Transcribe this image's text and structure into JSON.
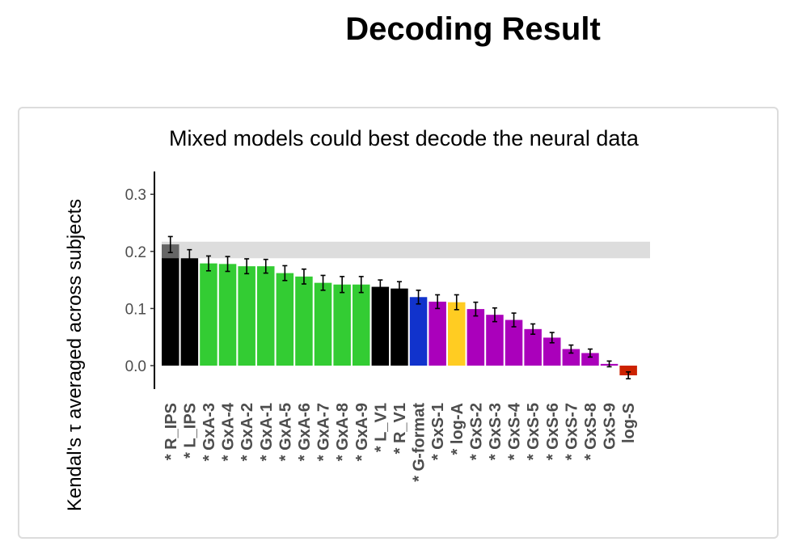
{
  "page": {
    "title": "Decoding Result"
  },
  "chart_data": {
    "type": "bar",
    "title": "Mixed models could best decode the neural data",
    "xlabel": "",
    "ylabel": "Kendal's τ averaged across subjects",
    "ylim": [
      -0.04,
      0.34
    ],
    "yticks": [
      "0.0",
      "0.1",
      "0.2",
      "0.3"
    ],
    "yticks_values": [
      0.0,
      0.1,
      0.2,
      0.3
    ],
    "grid": false,
    "noise_ceiling": {
      "lower": 0.188,
      "upper": 0.217
    },
    "categories": [
      "R_IPS",
      "L_IPS",
      "GxA-3",
      "GxA-4",
      "GxA-2",
      "GxA-1",
      "GxA-5",
      "GxA-6",
      "GxA-7",
      "GxA-8",
      "GxA-9",
      "L_V1",
      "R_V1",
      "G-format",
      "GxS-1",
      "log-A",
      "GxS-2",
      "GxS-3",
      "GxS-4",
      "GxS-5",
      "GxS-6",
      "GxS-7",
      "GxS-8",
      "GxS-9",
      "log-S"
    ],
    "star_labels": [
      "* R_IPS",
      "* L_IPS",
      "* GxA-3",
      "* GxA-4",
      "* GxA-2",
      "* GxA-1",
      "* GxA-5",
      "* GxA-6",
      "* GxA-7",
      "* GxA-8",
      "* GxA-9",
      "* L_V1",
      "* R_V1",
      "* G-format",
      "* GxS-1",
      "* log-A",
      "* GxS-2",
      "* GxS-3",
      "* GxS-4",
      "* GxS-5",
      "* GxS-6",
      "* GxS-7",
      "* GxS-8",
      "GxS-9",
      "log-S"
    ],
    "values": [
      0.212,
      0.188,
      0.179,
      0.178,
      0.174,
      0.174,
      0.162,
      0.156,
      0.145,
      0.142,
      0.142,
      0.138,
      0.135,
      0.12,
      0.112,
      0.111,
      0.099,
      0.089,
      0.08,
      0.064,
      0.049,
      0.029,
      0.022,
      0.003,
      -0.017
    ],
    "errors": [
      0.014,
      0.015,
      0.013,
      0.013,
      0.013,
      0.012,
      0.013,
      0.013,
      0.013,
      0.014,
      0.014,
      0.012,
      0.012,
      0.012,
      0.012,
      0.013,
      0.012,
      0.012,
      0.012,
      0.009,
      0.009,
      0.007,
      0.007,
      0.005,
      0.006
    ],
    "colors": [
      "#000000",
      "#000000",
      "#33cc33",
      "#33cc33",
      "#33cc33",
      "#33cc33",
      "#33cc33",
      "#33cc33",
      "#33cc33",
      "#33cc33",
      "#33cc33",
      "#000000",
      "#000000",
      "#1133cc",
      "#aa00bb",
      "#ffcc22",
      "#aa00bb",
      "#aa00bb",
      "#aa00bb",
      "#aa00bb",
      "#aa00bb",
      "#aa00bb",
      "#aa00bb",
      "#aa00bb",
      "#cc2200"
    ],
    "highlight_color": "#666666",
    "ceiling_color": "#dddddd"
  }
}
